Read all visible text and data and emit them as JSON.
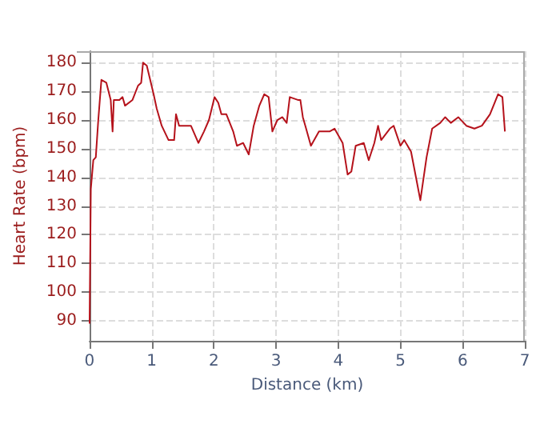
{
  "chart_data": {
    "type": "line",
    "xlabel": "Distance (km)",
    "ylabel": "Heart Rate (bpm)",
    "xlim": [
      0,
      7
    ],
    "xticks": [
      0,
      1,
      2,
      3,
      4,
      5,
      6,
      7
    ],
    "ylim": [
      83,
      184
    ],
    "yticks": [
      90,
      100,
      110,
      120,
      130,
      140,
      150,
      160,
      170,
      180
    ],
    "grid": true,
    "marker": "none",
    "line_style": "solid",
    "series": [
      {
        "color": "#b5121b",
        "x": [
          0,
          0.02,
          0.06,
          0.1,
          0.14,
          0.19,
          0.27,
          0.34,
          0.37,
          0.39,
          0.48,
          0.53,
          0.57,
          0.69,
          0.78,
          0.83,
          0.86,
          0.92,
          1.03,
          1.08,
          1.16,
          1.27,
          1.36,
          1.39,
          1.44,
          1.63,
          1.75,
          1.84,
          1.92,
          2.01,
          2.07,
          2.12,
          2.2,
          2.31,
          2.37,
          2.47,
          2.56,
          2.64,
          2.73,
          2.81,
          2.88,
          2.94,
          3.02,
          3.1,
          3.17,
          3.22,
          3.35,
          3.39,
          3.43,
          3.47,
          3.56,
          3.69,
          3.86,
          3.94,
          4.07,
          4.15,
          4.21,
          4.28,
          4.41,
          4.49,
          4.58,
          4.64,
          4.69,
          4.83,
          4.89,
          5.0,
          5.06,
          5.17,
          5.25,
          5.32,
          5.42,
          5.51,
          5.64,
          5.72,
          5.81,
          5.93,
          6.06,
          6.19,
          6.31,
          6.44,
          6.57,
          6.64,
          6.68
        ],
        "values": [
          89,
          136,
          146,
          147,
          160,
          174,
          173,
          167,
          156,
          167,
          167,
          168,
          165,
          167,
          172,
          173,
          180,
          179,
          169,
          164,
          158,
          153,
          153,
          162,
          158,
          158,
          152,
          156,
          160,
          168,
          166,
          162,
          162,
          156,
          151,
          152,
          148,
          158,
          165,
          169,
          168,
          156,
          160,
          161,
          159,
          168,
          167,
          167,
          161,
          158,
          151,
          156,
          156,
          157,
          152,
          141,
          142,
          151,
          152,
          146,
          152,
          158,
          153,
          157,
          158,
          151,
          153,
          149,
          140,
          132,
          147,
          157,
          159,
          161,
          159,
          161,
          158,
          157,
          158,
          162,
          169,
          168,
          156
        ]
      }
    ]
  }
}
